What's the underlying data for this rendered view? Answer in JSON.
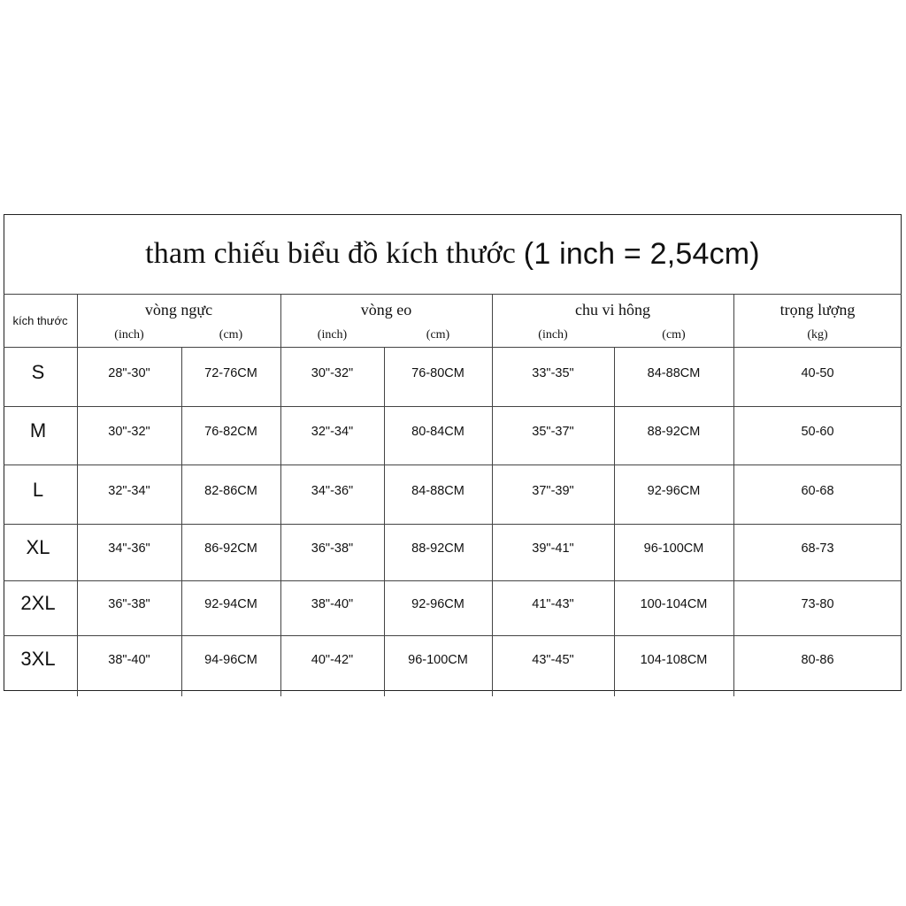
{
  "title": {
    "main": "tham chiếu biểu đồ kích thước",
    "note": "(1 inch = 2,54cm)"
  },
  "header": {
    "size_label": "kích thước",
    "groups": [
      "vòng ngực",
      "vòng eo",
      "chu vi hông",
      "trọng lượng"
    ],
    "units": [
      "(inch)",
      "(cm)",
      "(inch)",
      "(cm)",
      "(inch)",
      "(cm)",
      "(kg)"
    ]
  },
  "rows": [
    {
      "size": "S",
      "values": [
        "28\"-30\"",
        "72-76CM",
        "30\"-32\"",
        "76-80CM",
        "33\"-35\"",
        "84-88CM",
        "40-50"
      ]
    },
    {
      "size": "M",
      "values": [
        "30\"-32\"",
        "76-82CM",
        "32\"-34\"",
        "80-84CM",
        "35\"-37\"",
        "88-92CM",
        "50-60"
      ]
    },
    {
      "size": "L",
      "values": [
        "32\"-34\"",
        "82-86CM",
        "34\"-36\"",
        "84-88CM",
        "37\"-39\"",
        "92-96CM",
        "60-68"
      ]
    },
    {
      "size": "XL",
      "values": [
        "34\"-36\"",
        "86-92CM",
        "36\"-38\"",
        "88-92CM",
        "39\"-41\"",
        "96-100CM",
        "68-73"
      ]
    },
    {
      "size": "2XL",
      "values": [
        "36\"-38\"",
        "92-94CM",
        "38\"-40\"",
        "92-96CM",
        "41\"-43\"",
        "100-104CM",
        "73-80"
      ]
    },
    {
      "size": "3XL",
      "values": [
        "38\"-40\"",
        "94-96CM",
        "40\"-42\"",
        "96-100CM",
        "43\"-45\"",
        "104-108CM",
        "80-86"
      ]
    }
  ]
}
